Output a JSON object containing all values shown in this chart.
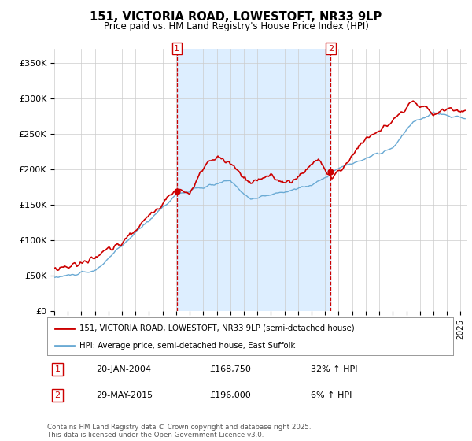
{
  "title": "151, VICTORIA ROAD, LOWESTOFT, NR33 9LP",
  "subtitle": "Price paid vs. HM Land Registry's House Price Index (HPI)",
  "ylabel_ticks": [
    "£0",
    "£50K",
    "£100K",
    "£150K",
    "£200K",
    "£250K",
    "£300K",
    "£350K"
  ],
  "ytick_values": [
    0,
    50000,
    100000,
    150000,
    200000,
    250000,
    300000,
    350000
  ],
  "ylim": [
    0,
    370000
  ],
  "xlim_start": 1995.0,
  "xlim_end": 2025.5,
  "sale1_date": 2004.05,
  "sale1_price": 168750,
  "sale2_date": 2015.41,
  "sale2_price": 196000,
  "property_color": "#cc0000",
  "hpi_color": "#6aaad4",
  "hpi_fill_color": "#ddeeff",
  "vline_color": "#cc0000",
  "grid_color": "#cccccc",
  "background_color": "#ffffff",
  "legend_label_property": "151, VICTORIA ROAD, LOWESTOFT, NR33 9LP (semi-detached house)",
  "legend_label_hpi": "HPI: Average price, semi-detached house, East Suffolk",
  "annotation1_date": "20-JAN-2004",
  "annotation1_price": "£168,750",
  "annotation1_hpi": "32% ↑ HPI",
  "annotation2_date": "29-MAY-2015",
  "annotation2_price": "£196,000",
  "annotation2_hpi": "6% ↑ HPI",
  "footer": "Contains HM Land Registry data © Crown copyright and database right 2025.\nThis data is licensed under the Open Government Licence v3.0.",
  "xtick_years": [
    1995,
    1996,
    1997,
    1998,
    1999,
    2000,
    2001,
    2002,
    2003,
    2004,
    2005,
    2006,
    2007,
    2008,
    2009,
    2010,
    2011,
    2012,
    2013,
    2014,
    2015,
    2016,
    2017,
    2018,
    2019,
    2020,
    2021,
    2022,
    2023,
    2024,
    2025
  ]
}
